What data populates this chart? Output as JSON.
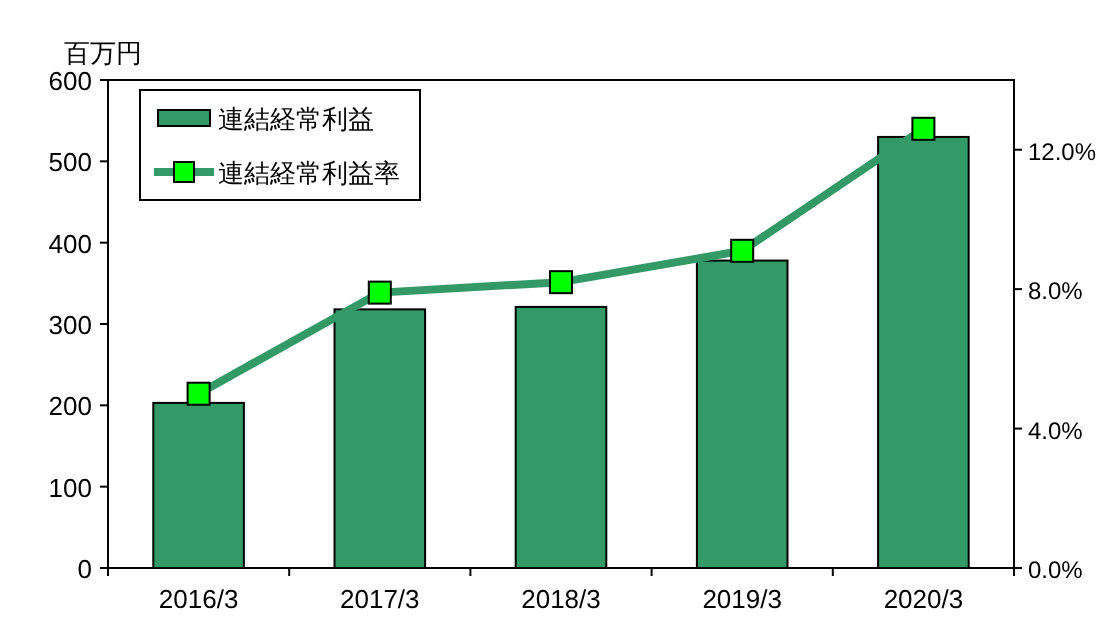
{
  "chart_data": {
    "type": "bar",
    "ylabel": "百万円",
    "categories": [
      "2016/3",
      "2017/3",
      "2018/3",
      "2019/3",
      "2020/3"
    ],
    "series": [
      {
        "name": "連結経常利益",
        "color": "#339966",
        "values": [
          203,
          318,
          321,
          378,
          530
        ]
      },
      {
        "name": "連結経常利益率",
        "type": "line",
        "axis": "y2",
        "color": "#339966",
        "marker": "square",
        "values": [
          5.0,
          7.9,
          8.2,
          9.1,
          12.6
        ]
      }
    ],
    "ylim": [
      0,
      600
    ],
    "yticks": [
      0,
      100,
      200,
      300,
      400,
      500,
      600
    ],
    "y2lim": [
      0,
      14
    ],
    "y2ticks": [
      {
        "value": 0,
        "label": "0.0%"
      },
      {
        "value": 4,
        "label": "4.0%"
      },
      {
        "value": 8,
        "label": "8.0%"
      },
      {
        "value": 12,
        "label": "12.0%"
      }
    ],
    "grid": false,
    "legend": "top left"
  }
}
